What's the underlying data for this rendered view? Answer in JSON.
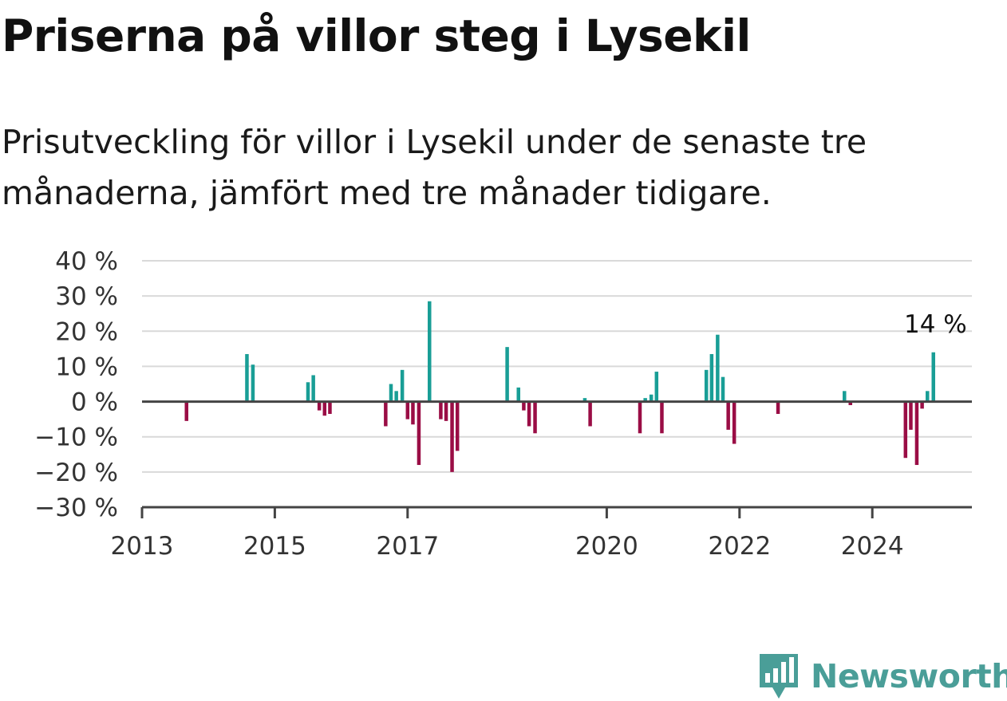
{
  "header": {
    "title": "Priserna på villor steg i Lysekil",
    "subtitle": "Prisutveckling för villor i Lysekil under de senaste tre månaderna, jämfört med tre månader tidigare."
  },
  "brand": {
    "name": "Newsworthy",
    "icon": "newsworthy-bar-chart-logo",
    "color": "#4a9e98"
  },
  "colors": {
    "positive": "#199e96",
    "negative": "#9a0d45",
    "grid": "#d9d9d9",
    "axis": "#444444"
  },
  "chart_data": {
    "type": "bar",
    "title": "Priserna på villor steg i Lysekil",
    "subtitle": "Prisutveckling för villor i Lysekil under de senaste tre månaderna, jämfört med tre månader tidigare.",
    "xlabel": "",
    "ylabel": "",
    "ylim": [
      -30,
      40
    ],
    "xlim": [
      2013.0,
      2025.5
    ],
    "grid": "horizontal",
    "y_ticks": [
      {
        "value": 40,
        "label": "40 %"
      },
      {
        "value": 30,
        "label": "30 %"
      },
      {
        "value": 20,
        "label": "20 %"
      },
      {
        "value": 10,
        "label": "10 %"
      },
      {
        "value": 0,
        "label": "0 %"
      },
      {
        "value": -10,
        "label": "−10 %"
      },
      {
        "value": -20,
        "label": "−20 %"
      },
      {
        "value": -30,
        "label": "−30 %"
      }
    ],
    "x_ticks": [
      {
        "value": 2013,
        "label": "2013"
      },
      {
        "value": 2015,
        "label": "2015"
      },
      {
        "value": 2017,
        "label": "2017"
      },
      {
        "value": 2020,
        "label": "2020"
      },
      {
        "value": 2022,
        "label": "2022"
      },
      {
        "value": 2024,
        "label": "2024"
      }
    ],
    "series": [
      {
        "x": [
          2013.67,
          2014.58,
          2014.67,
          2015.5,
          2015.58,
          2015.67,
          2015.75,
          2015.83,
          2016.67,
          2016.75,
          2016.83,
          2016.92,
          2017.0,
          2017.08,
          2017.17,
          2017.33,
          2017.5,
          2017.58,
          2017.67,
          2017.75,
          2018.5,
          2018.67,
          2018.75,
          2018.83,
          2018.92,
          2019.67,
          2019.75,
          2020.5,
          2020.58,
          2020.67,
          2020.75,
          2020.83,
          2021.5,
          2021.58,
          2021.67,
          2021.75,
          2021.83,
          2021.92,
          2022.58,
          2023.58,
          2023.67,
          2024.5,
          2024.58,
          2024.67,
          2024.75,
          2024.83,
          2024.92
        ],
        "values": [
          -5.5,
          13.5,
          10.5,
          5.5,
          7.5,
          -2.5,
          -4,
          -3.5,
          -7,
          5,
          3,
          9,
          -5,
          -6.5,
          -18,
          28.5,
          -5,
          -5.5,
          -20,
          -14,
          15.5,
          4,
          -2.5,
          -7,
          -9,
          1,
          -7,
          -9,
          1,
          2,
          8.5,
          -9,
          9,
          13.5,
          19,
          7,
          -8,
          -12,
          -3.5,
          3,
          -1,
          -16,
          -8,
          -18,
          -2,
          3,
          14
        ]
      }
    ],
    "annotations": [
      {
        "x": 2024.92,
        "y": 14,
        "label": "14 %"
      }
    ]
  }
}
